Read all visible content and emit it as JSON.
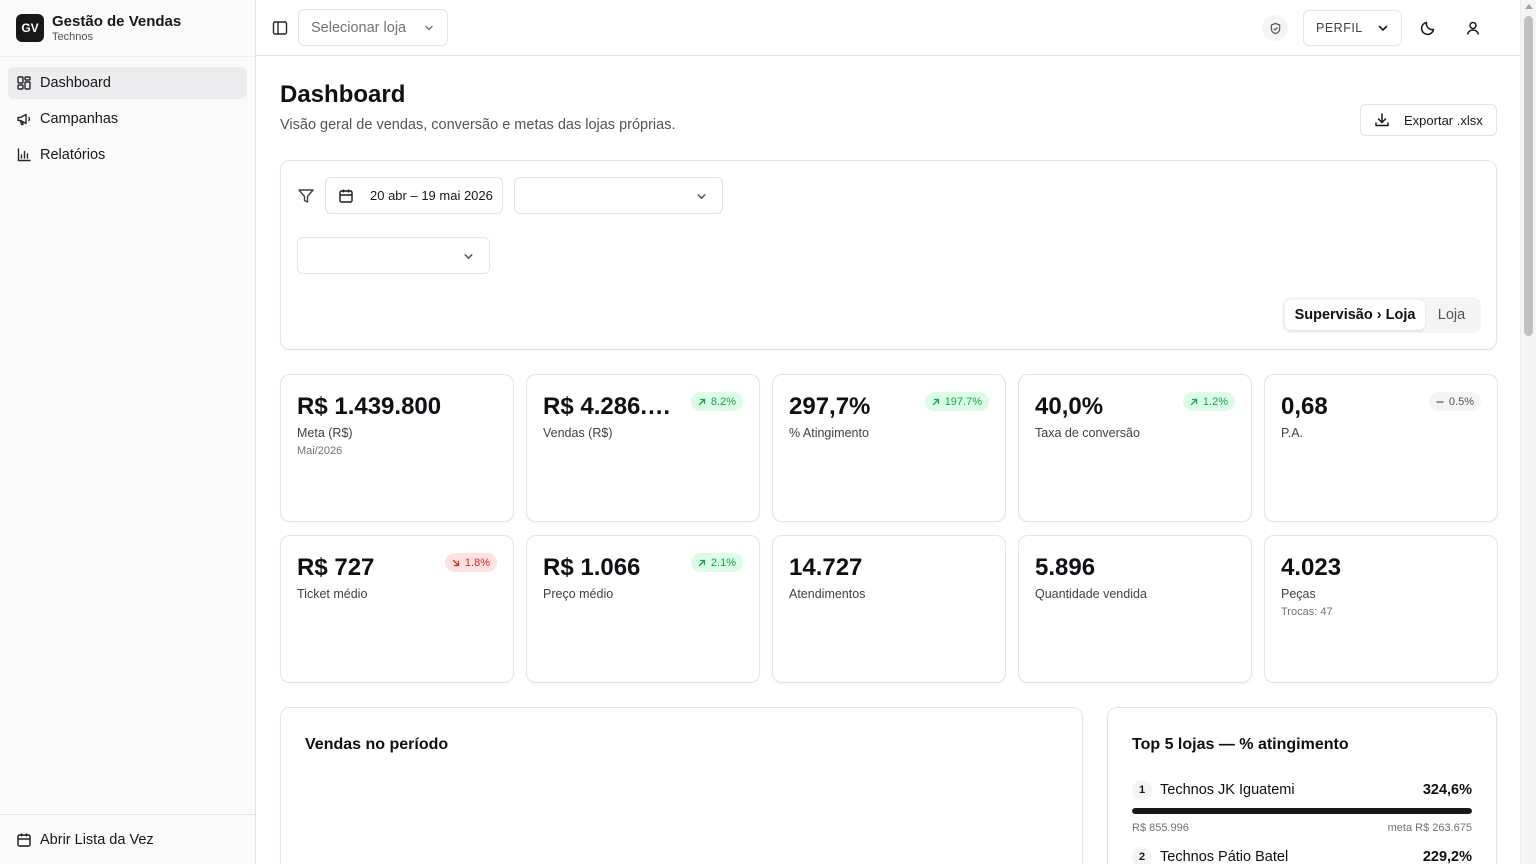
{
  "brand": {
    "logo": "GV",
    "title": "Gestão de Vendas",
    "subtitle": "Technos"
  },
  "sidebar": {
    "items": [
      {
        "label": "Dashboard",
        "icon": "dashboard-icon",
        "active": true
      },
      {
        "label": "Campanhas",
        "icon": "megaphone-icon",
        "active": false
      },
      {
        "label": "Relatórios",
        "icon": "bar-chart-icon",
        "active": false
      }
    ],
    "footer": {
      "label": "Abrir Lista da Vez",
      "icon": "clipboard-clock-icon"
    }
  },
  "header": {
    "store_select_placeholder": "Selecionar loja",
    "profile_label": "PERFIL",
    "icons": [
      "sidebar-toggle-icon",
      "shield-icon",
      "moon-icon",
      "user-icon"
    ]
  },
  "page": {
    "title": "Dashboard",
    "subtitle": "Visão geral de vendas, conversão e metas das lojas próprias.",
    "export_label": "Exportar .xlsx"
  },
  "filters": {
    "date_range": "20 abr – 19 mai 2026",
    "select_a_value": "",
    "select_b_value": "",
    "view_options": [
      "Supervisão › Loja",
      "Loja"
    ],
    "view_selected": "Supervisão › Loja"
  },
  "kpis": [
    {
      "value": "R$ 1.439.800",
      "label": "Meta (R$)",
      "sub": "Mai/2026",
      "badge": null
    },
    {
      "value": "R$ 4.286.…",
      "label": "Vendas (R$)",
      "sub": "",
      "badge": {
        "text": "8.2%",
        "trend": "up"
      }
    },
    {
      "value": "297,7%",
      "label": "% Atingimento",
      "sub": "",
      "badge": {
        "text": "197.7%",
        "trend": "up"
      }
    },
    {
      "value": "40,0%",
      "label": "Taxa de conversão",
      "sub": "",
      "badge": {
        "text": "1.2%",
        "trend": "up"
      }
    },
    {
      "value": "0,68",
      "label": "P.A.",
      "sub": "",
      "badge": {
        "text": "0.5%",
        "trend": "flat"
      }
    },
    {
      "value": "R$ 727",
      "label": "Ticket médio",
      "sub": "",
      "badge": {
        "text": "1.8%",
        "trend": "down"
      }
    },
    {
      "value": "R$ 1.066",
      "label": "Preço médio",
      "sub": "",
      "badge": {
        "text": "2.1%",
        "trend": "up"
      }
    },
    {
      "value": "14.727",
      "label": "Atendimentos",
      "sub": "",
      "badge": null
    },
    {
      "value": "5.896",
      "label": "Quantidade vendida",
      "sub": "",
      "badge": null
    },
    {
      "value": "4.023",
      "label": "Peças",
      "sub": "Trocas: 47",
      "badge": null
    }
  ],
  "sales_panel": {
    "title": "Vendas no período"
  },
  "top_stores": {
    "title": "Top 5 lojas — % atingimento",
    "rows": [
      {
        "rank": "1",
        "name": "Technos JK Iguatemi",
        "pct": "324,6%",
        "fill": 1.0,
        "sales": "R$ 855.996",
        "goal": "meta R$ 263.675"
      },
      {
        "rank": "2",
        "name": "Technos Pátio Batel",
        "pct": "229,2%",
        "fill": 1.0,
        "sales": "",
        "goal": ""
      }
    ]
  },
  "colors": {
    "accent": "#18181b",
    "positive": "#16a34a",
    "negative": "#dc2626",
    "neutral": "#52525b"
  }
}
